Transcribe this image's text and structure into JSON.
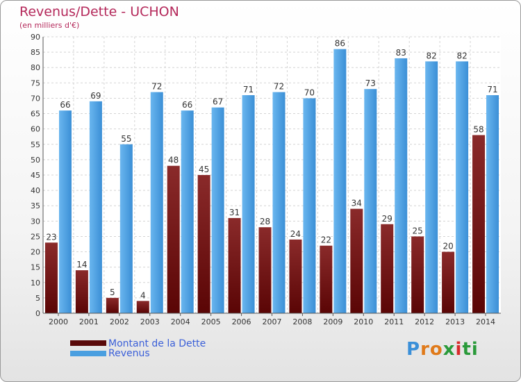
{
  "header": {
    "title": "Revenus/Dette - UCHON",
    "subtitle": "(en milliers d'€)"
  },
  "chart_data": {
    "type": "bar",
    "categories": [
      "2000",
      "2001",
      "2002",
      "2003",
      "2004",
      "2005",
      "2006",
      "2007",
      "2008",
      "2009",
      "2010",
      "2011",
      "2012",
      "2013",
      "2014"
    ],
    "series": [
      {
        "name": "Montant de la Dette",
        "values": [
          23,
          14,
          5,
          4,
          48,
          45,
          31,
          28,
          24,
          22,
          34,
          29,
          25,
          20,
          58
        ],
        "color": "#7a1a1a"
      },
      {
        "name": "Revenus",
        "values": [
          66,
          69,
          55,
          72,
          66,
          67,
          71,
          72,
          70,
          86,
          73,
          83,
          82,
          82,
          71
        ],
        "color": "#4a9fe0"
      }
    ],
    "title": "Revenus/Dette - UCHON",
    "subtitle": "(en milliers d'€)",
    "xlabel": "",
    "ylabel": "",
    "ylim": [
      0,
      90
    ],
    "ytick_step": 5,
    "grid": true,
    "legend": "bottom-left"
  },
  "legend": {
    "items": [
      {
        "label": "Montant de la Dette",
        "color": "#5a0a0a"
      },
      {
        "label": "Revenus",
        "color": "#4a9fe0"
      }
    ]
  },
  "logo": {
    "letters": [
      "P",
      "r",
      "o",
      "x",
      "i",
      "t",
      "i"
    ],
    "colors": [
      "#3a8fd8",
      "#e07a1a",
      "#e07a1a",
      "#2a9a3a",
      "#d82a2a",
      "#2a9a3a",
      "#2a9a3a"
    ]
  }
}
